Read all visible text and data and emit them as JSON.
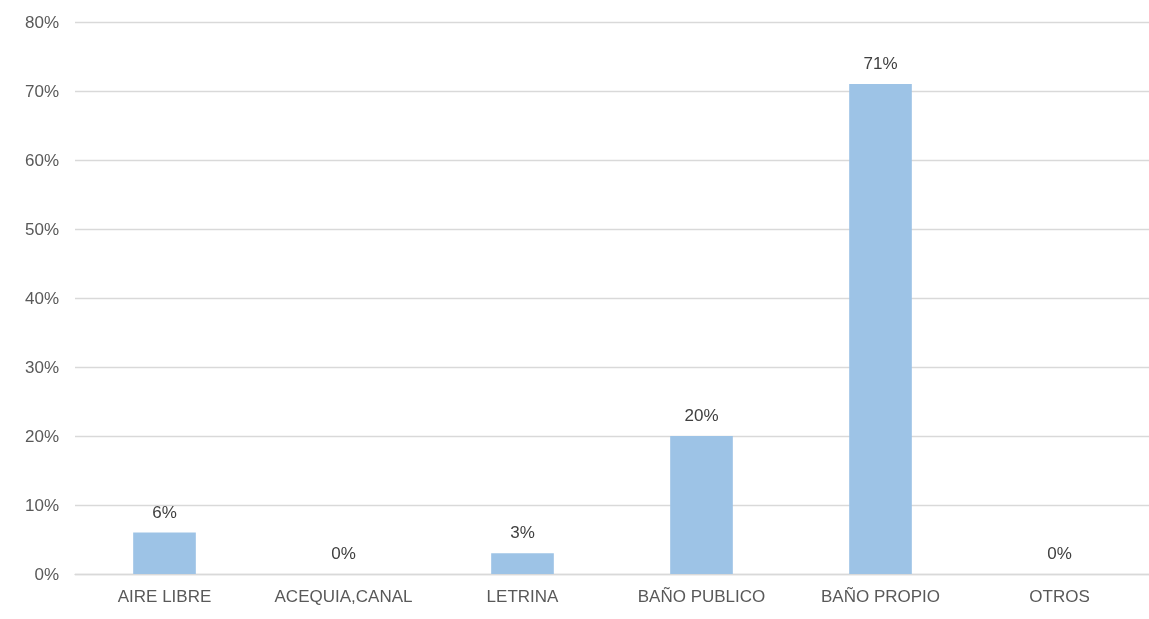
{
  "chart_data": {
    "type": "bar",
    "categories": [
      "AIRE LIBRE",
      "ACEQUIA,CANAL",
      "LETRINA",
      "BAÑO PUBLICO",
      "BAÑO PROPIO",
      "OTROS"
    ],
    "values": [
      6,
      0,
      3,
      20,
      71,
      0
    ],
    "value_labels": [
      "6%",
      "0%",
      "3%",
      "20%",
      "71%",
      "0%"
    ],
    "color": "#9dc3e6",
    "ylim": [
      0,
      80
    ],
    "yticks": [
      {
        "value": 0,
        "label": "0%"
      },
      {
        "value": 10,
        "label": "10%"
      },
      {
        "value": 20,
        "label": "20%"
      },
      {
        "value": 30,
        "label": "30%"
      },
      {
        "value": 40,
        "label": "40%"
      },
      {
        "value": 50,
        "label": "50%"
      },
      {
        "value": 60,
        "label": "60%"
      },
      {
        "value": 70,
        "label": "70%"
      },
      {
        "value": 80,
        "label": "80%"
      }
    ],
    "grid": "y"
  }
}
